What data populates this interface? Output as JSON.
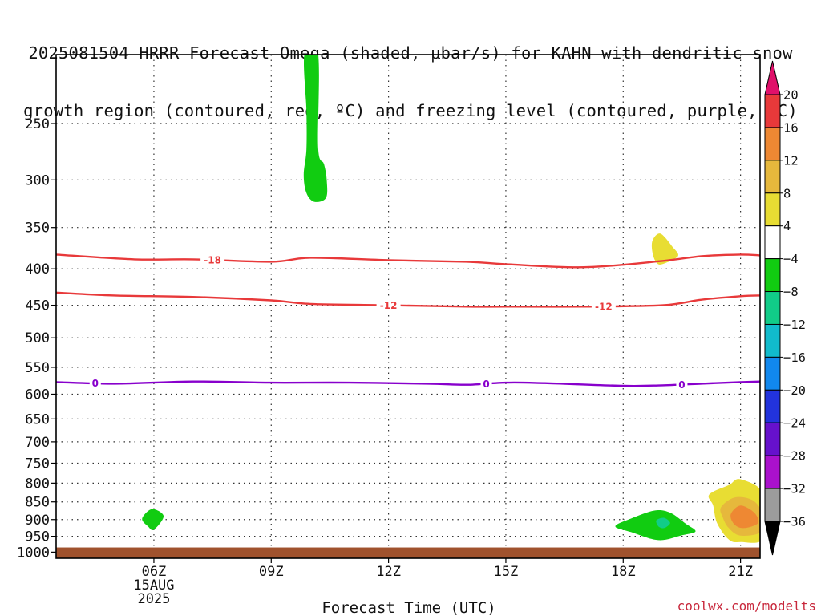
{
  "title_lines": [
    "2025081504 HRRR Forecast Omega (shaded, μbar/s) for KAHN with dendritic snow",
    "growth region (contoured, red, ºC) and freezing level (contoured, purple, ºC)"
  ],
  "credit": "coolwx.com/modelts",
  "chart_data": {
    "type": "time-height cross section",
    "xlabel": "Forecast Time (UTC)",
    "x_range_hours": [
      3.5,
      21.5
    ],
    "x_ticks": [
      {
        "hour": 6,
        "label": "06Z",
        "sub": [
          "15AUG",
          "2025"
        ]
      },
      {
        "hour": 9,
        "label": "09Z"
      },
      {
        "hour": 12,
        "label": "12Z"
      },
      {
        "hour": 15,
        "label": "15Z"
      },
      {
        "hour": 18,
        "label": "18Z"
      },
      {
        "hour": 21,
        "label": "21Z"
      }
    ],
    "y_ticks_hPa": [
      250,
      300,
      350,
      400,
      450,
      500,
      550,
      600,
      650,
      700,
      750,
      800,
      850,
      900,
      950,
      1000
    ],
    "y_range_hPa": [
      200,
      1020
    ],
    "y_scale": "log pressure",
    "grid": "dotted",
    "surface_hPa": 985,
    "ground_color": "#a0522d",
    "contours": [
      {
        "name": "-18",
        "color": "#e8393a",
        "labels": [
          {
            "hour": 7.5,
            "text": "-18"
          }
        ],
        "points": [
          [
            3.5,
            382
          ],
          [
            5.5,
            388
          ],
          [
            7,
            388
          ],
          [
            9,
            391
          ],
          [
            10,
            386
          ],
          [
            12,
            389
          ],
          [
            14,
            391
          ],
          [
            15,
            394
          ],
          [
            17,
            398
          ],
          [
            19,
            390
          ],
          [
            20,
            384
          ],
          [
            21,
            382
          ],
          [
            21.5,
            383
          ]
        ]
      },
      {
        "name": "-12",
        "color": "#e8393a",
        "labels": [
          {
            "hour": 12,
            "text": "-12"
          },
          {
            "hour": 17.5,
            "text": "-12"
          }
        ],
        "points": [
          [
            3.5,
            432
          ],
          [
            5,
            436
          ],
          [
            7,
            438
          ],
          [
            9,
            443
          ],
          [
            10,
            448
          ],
          [
            12,
            450
          ],
          [
            14,
            452
          ],
          [
            15,
            452
          ],
          [
            17,
            452
          ],
          [
            19,
            450
          ],
          [
            20,
            442
          ],
          [
            21,
            437
          ],
          [
            21.5,
            436
          ]
        ]
      },
      {
        "name": "0",
        "color": "#8800cc",
        "labels": [
          {
            "hour": 4.5,
            "text": "0"
          },
          {
            "hour": 14.5,
            "text": "0"
          },
          {
            "hour": 19.5,
            "text": "0"
          }
        ],
        "points": [
          [
            3.5,
            577
          ],
          [
            5,
            580
          ],
          [
            7,
            576
          ],
          [
            9,
            578
          ],
          [
            11,
            578
          ],
          [
            13,
            580
          ],
          [
            14,
            582
          ],
          [
            15,
            578
          ],
          [
            16,
            579
          ],
          [
            18,
            584
          ],
          [
            19,
            583
          ],
          [
            20,
            580
          ],
          [
            21,
            577
          ],
          [
            21.5,
            576
          ]
        ]
      }
    ],
    "shaded_regions": [
      {
        "value": -6,
        "color": "#11cc11",
        "outline": [
          [
            9.85,
            200
          ],
          [
            10.2,
            200
          ],
          [
            10.2,
            270
          ],
          [
            10.35,
            285
          ],
          [
            10.42,
            300
          ],
          [
            10.4,
            318
          ],
          [
            10.1,
            322
          ],
          [
            9.9,
            313
          ],
          [
            9.83,
            295
          ],
          [
            9.9,
            272
          ],
          [
            9.9,
            240
          ]
        ]
      },
      {
        "value": 6,
        "color": "#e8dd33",
        "outline": [
          [
            18.75,
            365
          ],
          [
            18.95,
            357
          ],
          [
            19.25,
            372
          ],
          [
            19.4,
            384
          ],
          [
            19,
            394
          ],
          [
            18.85,
            392
          ],
          [
            18.75,
            380
          ]
        ]
      },
      {
        "value": -6,
        "color": "#11cc11",
        "outline": [
          [
            5.7,
            897
          ],
          [
            5.95,
            870
          ],
          [
            6.25,
            890
          ],
          [
            6,
            930
          ],
          [
            5.85,
            920
          ]
        ]
      },
      {
        "value": -6,
        "color": "#11cc11",
        "outline": [
          [
            17.8,
            920
          ],
          [
            18.2,
            897
          ],
          [
            18.8,
            874
          ],
          [
            19.2,
            880
          ],
          [
            19.6,
            912
          ],
          [
            19.85,
            935
          ],
          [
            19.5,
            947
          ],
          [
            18.9,
            962
          ],
          [
            18.2,
            937
          ]
        ]
      },
      {
        "value": -10,
        "color": "#11cc88",
        "outline": [
          [
            18.85,
            902
          ],
          [
            19.05,
            895
          ],
          [
            19.2,
            910
          ],
          [
            19.05,
            925
          ],
          [
            18.9,
            920
          ]
        ]
      },
      {
        "value": 6,
        "color": "#e8dd33",
        "outline": [
          [
            20.2,
            830
          ],
          [
            20.7,
            805
          ],
          [
            21,
            790
          ],
          [
            21.6,
            830
          ],
          [
            21.6,
            955
          ],
          [
            21,
            968
          ],
          [
            20.7,
            960
          ],
          [
            20.4,
            910
          ],
          [
            20.3,
            860
          ]
        ]
      },
      {
        "value": 10,
        "color": "#e6b83c",
        "outline": [
          [
            20.5,
            865
          ],
          [
            20.85,
            838
          ],
          [
            21.3,
            845
          ],
          [
            21.55,
            880
          ],
          [
            21.55,
            935
          ],
          [
            21,
            948
          ],
          [
            20.7,
            925
          ],
          [
            20.55,
            895
          ]
        ]
      },
      {
        "value": 14,
        "color": "#ee8833",
        "outline": [
          [
            20.75,
            885
          ],
          [
            21,
            860
          ],
          [
            21.35,
            880
          ],
          [
            21.45,
            910
          ],
          [
            21.1,
            925
          ],
          [
            20.85,
            915
          ]
        ]
      }
    ],
    "colorbar": {
      "top_color": "#e0106a",
      "bottom_color": "#000000",
      "segments": [
        {
          "color": "#e8393a"
        },
        {
          "color": "#ee8833"
        },
        {
          "color": "#e6b83c"
        },
        {
          "color": "#e8dd33"
        },
        {
          "color": "#ffffff"
        },
        {
          "color": "#11cc11"
        },
        {
          "color": "#11cc88"
        },
        {
          "color": "#11bbcc"
        },
        {
          "color": "#1188ee"
        },
        {
          "color": "#2233dd"
        },
        {
          "color": "#6611cc"
        },
        {
          "color": "#aa11cc"
        },
        {
          "color": "#9c9c9c"
        }
      ],
      "tick_labels": [
        "20",
        "16",
        "12",
        "8",
        "4",
        "−4",
        "−8",
        "−12",
        "−16",
        "−20",
        "−24",
        "−28",
        "−32",
        "−36"
      ]
    }
  }
}
